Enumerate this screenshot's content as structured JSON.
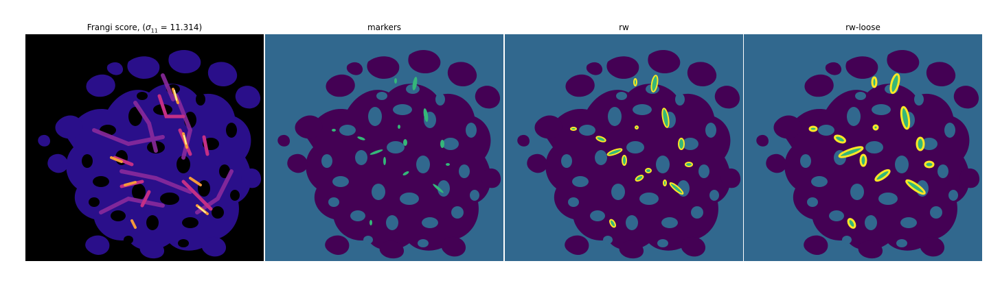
{
  "figure": {
    "panels": [
      {
        "title_main": "Frangi score, (",
        "title_math": "σ",
        "title_sub": "11",
        "title_rest": " = 11.314)",
        "kind": "frangi"
      },
      {
        "title": "markers",
        "kind": "markers"
      },
      {
        "title": "rw",
        "kind": "rw"
      },
      {
        "title": "rw-loose",
        "kind": "rw-loose"
      }
    ]
  },
  "colors": {
    "background_teal": "#31688e",
    "vessel_purple": "#440154",
    "marker_green": "#35b779",
    "label_yellow": "#fde725",
    "frangi_black": "#000000",
    "frangi_indigo": "#2a0f8a",
    "frangi_magenta": "#c42f86",
    "frangi_orange": "#f59a3a",
    "frangi_yellow": "#fcf3a0"
  }
}
